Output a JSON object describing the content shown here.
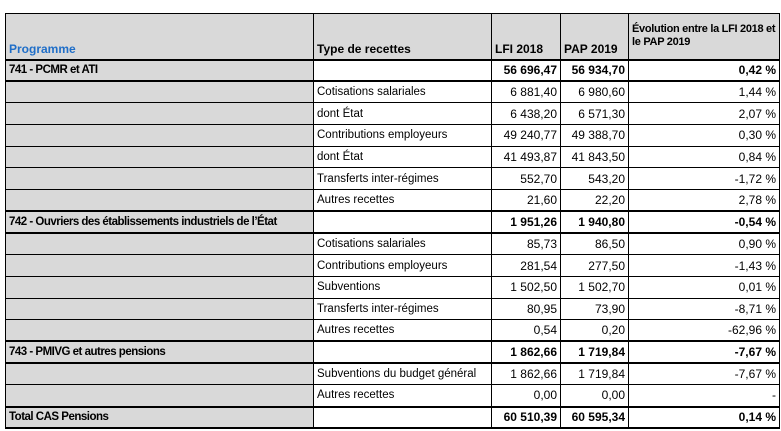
{
  "colors": {
    "header_bg": "#D9D9D9",
    "accent_blue": "#1F6EC8",
    "border": "#000000",
    "text": "#000000"
  },
  "table": {
    "headers": [
      "Programme",
      "Type de recettes",
      "LFI 2018",
      "PAP 2019",
      "Évolution entre la LFI 2018 et le PAP 2019"
    ],
    "rows": [
      {
        "programme": "741 - PCMR et ATI",
        "type": "",
        "lfi": "56 696,47",
        "pap": "56 934,70",
        "evo": "0,42 %",
        "section": true
      },
      {
        "programme": "",
        "type": "Cotisations salariales",
        "lfi": "6 881,40",
        "pap": "6 980,60",
        "evo": "1,44 %",
        "section": false
      },
      {
        "programme": "",
        "type": "dont État",
        "lfi": "6 438,20",
        "pap": "6 571,30",
        "evo": "2,07 %",
        "section": false
      },
      {
        "programme": "",
        "type": "Contributions employeurs",
        "lfi": "49 240,77",
        "pap": "49 388,70",
        "evo": "0,30 %",
        "section": false
      },
      {
        "programme": "",
        "type": "dont État",
        "lfi": "41 493,87",
        "pap": "41 843,50",
        "evo": "0,84 %",
        "section": false
      },
      {
        "programme": "",
        "type": "Transferts inter-régimes",
        "lfi": "552,70",
        "pap": "543,20",
        "evo": "-1,72 %",
        "section": false
      },
      {
        "programme": "",
        "type": "Autres recettes",
        "lfi": "21,60",
        "pap": "22,20",
        "evo": "2,78 %",
        "section": false
      },
      {
        "programme": "742 - Ouvriers des établissements industriels de l’État",
        "type": "",
        "lfi": "1 951,26",
        "pap": "1 940,80",
        "evo": "-0,54 %",
        "section": true
      },
      {
        "programme": "",
        "type": "Cotisations salariales",
        "lfi": "85,73",
        "pap": "86,50",
        "evo": "0,90 %",
        "section": false
      },
      {
        "programme": "",
        "type": "Contributions employeurs",
        "lfi": "281,54",
        "pap": "277,50",
        "evo": "-1,43 %",
        "section": false
      },
      {
        "programme": "",
        "type": "Subventions",
        "lfi": "1 502,50",
        "pap": "1 502,70",
        "evo": "0,01 %",
        "section": false
      },
      {
        "programme": "",
        "type": "Transferts inter-régimes",
        "lfi": "80,95",
        "pap": "73,90",
        "evo": "-8,71 %",
        "section": false
      },
      {
        "programme": "",
        "type": "Autres recettes",
        "lfi": "0,54",
        "pap": "0,20",
        "evo": "-62,96 %",
        "section": false
      },
      {
        "programme": "743 - PMIVG et autres pensions",
        "type": "",
        "lfi": "1 862,66",
        "pap": "1 719,84",
        "evo": "-7,67 %",
        "section": true
      },
      {
        "programme": "",
        "type": "Subventions du budget général",
        "lfi": "1 862,66",
        "pap": "1 719,84",
        "evo": "-7,67 %",
        "section": false
      },
      {
        "programme": "",
        "type": "Autres recettes",
        "lfi": "0,00",
        "pap": "0,00",
        "evo": "-",
        "section": false
      },
      {
        "programme": "Total CAS Pensions",
        "type": "",
        "lfi": "60 510,39",
        "pap": "60 595,34",
        "evo": "0,14 %",
        "section": true
      }
    ]
  }
}
